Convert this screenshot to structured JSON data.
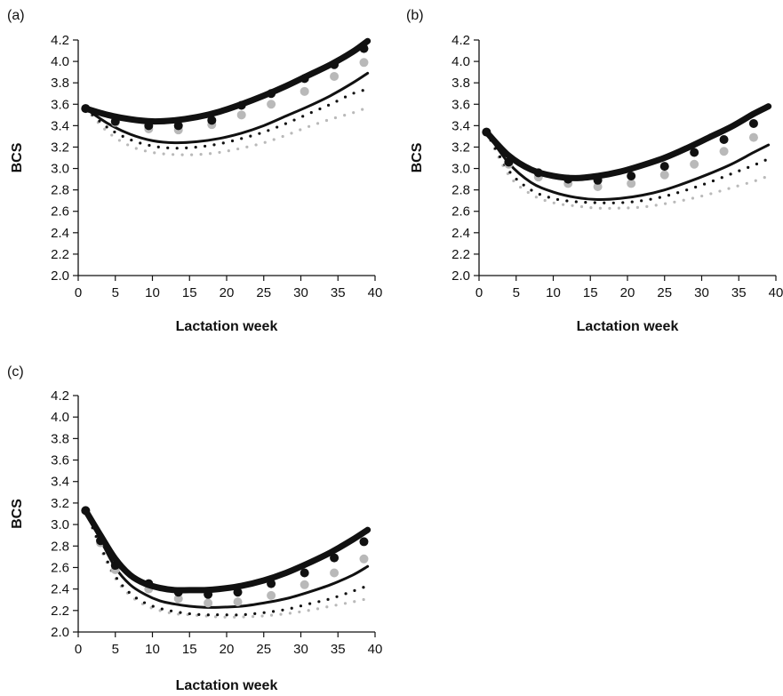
{
  "chart_data": [
    {
      "type": "line",
      "panel_label": "(a)",
      "xlabel": "Lactation week",
      "ylabel": "BCS",
      "xlim": [
        0,
        40
      ],
      "ylim": [
        2.0,
        4.2
      ],
      "xticks": [
        0,
        5,
        10,
        15,
        20,
        25,
        30,
        35,
        40
      ],
      "yticks": [
        2.0,
        2.2,
        2.4,
        2.6,
        2.8,
        3.0,
        3.2,
        3.4,
        3.6,
        3.8,
        4.0,
        4.2
      ],
      "series": [
        {
          "style": "thick-black-line",
          "x": [
            1,
            4,
            7,
            10,
            13,
            16,
            19,
            22,
            25,
            28,
            31,
            34,
            37,
            39
          ],
          "y": [
            3.56,
            3.5,
            3.46,
            3.44,
            3.45,
            3.48,
            3.53,
            3.6,
            3.68,
            3.77,
            3.87,
            3.97,
            4.09,
            4.19
          ]
        },
        {
          "style": "black-dots",
          "x": [
            1,
            5,
            9.5,
            13.5,
            18,
            22,
            26,
            30.5,
            34.5,
            38.5
          ],
          "y": [
            3.56,
            3.44,
            3.4,
            3.4,
            3.45,
            3.59,
            3.7,
            3.84,
            3.97,
            4.12
          ]
        },
        {
          "style": "grey-dots",
          "x": [
            1,
            5,
            9.5,
            13.5,
            18,
            22,
            26,
            30.5,
            34.5,
            38.5
          ],
          "y": [
            3.56,
            3.43,
            3.37,
            3.36,
            3.41,
            3.5,
            3.6,
            3.72,
            3.86,
            3.99
          ]
        },
        {
          "style": "thin-black-line",
          "x": [
            1,
            4,
            7,
            10,
            13,
            16,
            19,
            22,
            25,
            28,
            31,
            34,
            37,
            39
          ],
          "y": [
            3.56,
            3.42,
            3.32,
            3.26,
            3.24,
            3.25,
            3.28,
            3.33,
            3.4,
            3.49,
            3.58,
            3.68,
            3.8,
            3.89
          ]
        },
        {
          "style": "black-dotted-line",
          "x": [
            1,
            4,
            7,
            10,
            13,
            16,
            19,
            22,
            25,
            28,
            31,
            34,
            37,
            39
          ],
          "y": [
            3.56,
            3.38,
            3.27,
            3.21,
            3.19,
            3.2,
            3.23,
            3.28,
            3.34,
            3.42,
            3.51,
            3.6,
            3.7,
            3.74
          ]
        },
        {
          "style": "grey-dotted-line",
          "x": [
            1,
            4,
            7,
            10,
            13,
            16,
            19,
            22,
            25,
            28,
            31,
            34,
            37,
            39
          ],
          "y": [
            3.56,
            3.34,
            3.21,
            3.15,
            3.13,
            3.13,
            3.15,
            3.19,
            3.24,
            3.31,
            3.39,
            3.46,
            3.52,
            3.57
          ]
        }
      ]
    },
    {
      "type": "line",
      "panel_label": "(b)",
      "xlabel": "Lactation week",
      "ylabel": "BCS",
      "xlim": [
        0,
        40
      ],
      "ylim": [
        2.0,
        4.2
      ],
      "xticks": [
        0,
        5,
        10,
        15,
        20,
        25,
        30,
        35,
        40
      ],
      "yticks": [
        2.0,
        2.2,
        2.4,
        2.6,
        2.8,
        3.0,
        3.2,
        3.4,
        3.6,
        3.8,
        4.0,
        4.2
      ],
      "series": [
        {
          "style": "thick-black-line",
          "x": [
            1,
            4,
            7,
            10,
            13,
            16,
            19,
            22,
            25,
            28,
            31,
            34,
            37,
            39
          ],
          "y": [
            3.34,
            3.12,
            2.99,
            2.93,
            2.91,
            2.93,
            2.97,
            3.03,
            3.1,
            3.19,
            3.29,
            3.39,
            3.51,
            3.58
          ]
        },
        {
          "style": "black-dots",
          "x": [
            1,
            4,
            8,
            12,
            16,
            20.5,
            25,
            29,
            33,
            37
          ],
          "y": [
            3.34,
            3.06,
            2.96,
            2.9,
            2.89,
            2.93,
            3.02,
            3.15,
            3.27,
            3.42
          ]
        },
        {
          "style": "grey-dots",
          "x": [
            1,
            4,
            8,
            12,
            16,
            20.5,
            25,
            29,
            33,
            37
          ],
          "y": [
            3.34,
            3.04,
            2.92,
            2.86,
            2.83,
            2.86,
            2.94,
            3.04,
            3.16,
            3.29
          ]
        },
        {
          "style": "thin-black-line",
          "x": [
            1,
            4,
            7,
            10,
            13,
            16,
            19,
            22,
            25,
            28,
            31,
            34,
            37,
            39
          ],
          "y": [
            3.34,
            3.05,
            2.87,
            2.78,
            2.73,
            2.71,
            2.72,
            2.75,
            2.8,
            2.87,
            2.95,
            3.04,
            3.15,
            3.22
          ]
        },
        {
          "style": "black-dotted-line",
          "x": [
            1,
            4,
            7,
            10,
            13,
            16,
            19,
            22,
            25,
            28,
            31,
            34,
            37,
            39
          ],
          "y": [
            3.34,
            2.98,
            2.8,
            2.72,
            2.69,
            2.68,
            2.68,
            2.7,
            2.74,
            2.8,
            2.87,
            2.95,
            3.03,
            3.09
          ]
        },
        {
          "style": "grey-dotted-line",
          "x": [
            1,
            4,
            7,
            10,
            13,
            16,
            19,
            22,
            25,
            28,
            31,
            34,
            37,
            39
          ],
          "y": [
            3.34,
            2.94,
            2.76,
            2.68,
            2.65,
            2.63,
            2.63,
            2.64,
            2.67,
            2.71,
            2.76,
            2.82,
            2.88,
            2.93
          ]
        }
      ]
    },
    {
      "type": "line",
      "panel_label": "(c)",
      "xlabel": "Lactation week",
      "ylabel": "BCS",
      "xlim": [
        0,
        40
      ],
      "ylim": [
        2.0,
        4.2
      ],
      "xticks": [
        0,
        5,
        10,
        15,
        20,
        25,
        30,
        35,
        40
      ],
      "yticks": [
        2.0,
        2.2,
        2.4,
        2.6,
        2.8,
        3.0,
        3.2,
        3.4,
        3.6,
        3.8,
        4.0,
        4.2
      ],
      "series": [
        {
          "style": "thick-black-line",
          "x": [
            1,
            3,
            5,
            7,
            9,
            11,
            13,
            15,
            17,
            19,
            22,
            25,
            28,
            31,
            34,
            37,
            39
          ],
          "y": [
            3.13,
            2.9,
            2.68,
            2.53,
            2.45,
            2.41,
            2.39,
            2.39,
            2.39,
            2.4,
            2.43,
            2.48,
            2.55,
            2.64,
            2.74,
            2.86,
            2.95
          ]
        },
        {
          "style": "black-dots",
          "x": [
            1,
            3,
            5,
            9.5,
            13.5,
            17.5,
            21.5,
            26,
            30.5,
            34.5,
            38.5
          ],
          "y": [
            3.13,
            2.85,
            2.62,
            2.45,
            2.37,
            2.35,
            2.37,
            2.45,
            2.55,
            2.69,
            2.84
          ]
        },
        {
          "style": "grey-dots",
          "x": [
            1,
            3,
            5,
            9.5,
            13.5,
            17.5,
            21.5,
            26,
            30.5,
            34.5,
            38.5
          ],
          "y": [
            3.13,
            2.83,
            2.58,
            2.4,
            2.31,
            2.27,
            2.28,
            2.34,
            2.44,
            2.55,
            2.68
          ]
        },
        {
          "style": "thin-black-line",
          "x": [
            1,
            3,
            5,
            7,
            9,
            11,
            13,
            15,
            17,
            19,
            22,
            25,
            28,
            31,
            34,
            37,
            39
          ],
          "y": [
            3.13,
            2.86,
            2.6,
            2.44,
            2.35,
            2.29,
            2.26,
            2.24,
            2.23,
            2.23,
            2.24,
            2.27,
            2.31,
            2.37,
            2.44,
            2.53,
            2.61
          ]
        },
        {
          "style": "black-dotted-line",
          "x": [
            1,
            3,
            5,
            7,
            9,
            11,
            13,
            15,
            17,
            19,
            22,
            25,
            28,
            31,
            34,
            37,
            39
          ],
          "y": [
            3.13,
            2.8,
            2.52,
            2.36,
            2.27,
            2.22,
            2.19,
            2.17,
            2.16,
            2.16,
            2.16,
            2.18,
            2.21,
            2.26,
            2.31,
            2.38,
            2.43
          ]
        },
        {
          "style": "grey-dotted-line",
          "x": [
            1,
            3,
            5,
            7,
            9,
            11,
            13,
            15,
            17,
            19,
            22,
            25,
            28,
            31,
            34,
            37,
            39
          ],
          "y": [
            3.13,
            2.78,
            2.5,
            2.34,
            2.25,
            2.2,
            2.17,
            2.16,
            2.15,
            2.14,
            2.14,
            2.15,
            2.17,
            2.2,
            2.24,
            2.28,
            2.31
          ]
        }
      ]
    }
  ]
}
